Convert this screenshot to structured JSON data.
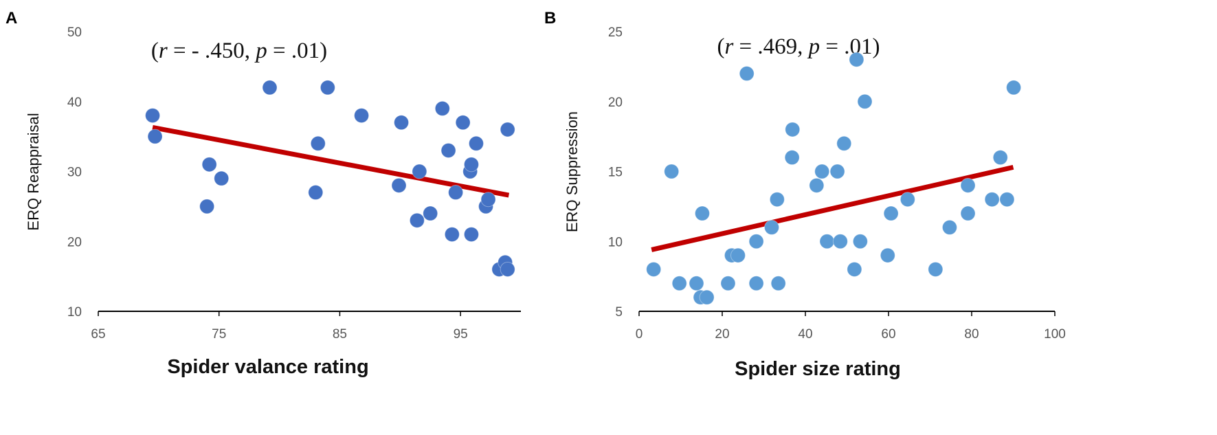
{
  "chart_data": [
    {
      "panel": "A",
      "type": "scatter",
      "annotation": {
        "prefix": "(",
        "r_symbol": "r",
        "r_value": " = - .450, ",
        "p_symbol": "p",
        "p_value": " = .01)"
      },
      "xlabel": "Spider valance rating",
      "ylabel": "ERQ Reappraisal",
      "xlim": [
        65,
        100
      ],
      "ylim": [
        10,
        50
      ],
      "xticks": [
        65,
        75,
        85,
        95
      ],
      "yticks": [
        10,
        20,
        30,
        40,
        50
      ],
      "marker_color": "#4472c4",
      "line_color": "#c00000",
      "trendline": {
        "x": [
          69.5,
          99
        ],
        "y": [
          36.3,
          26.6
        ]
      },
      "points": [
        {
          "x": 69.5,
          "y": 38
        },
        {
          "x": 69.7,
          "y": 35
        },
        {
          "x": 74,
          "y": 25
        },
        {
          "x": 74.2,
          "y": 31
        },
        {
          "x": 75.2,
          "y": 29
        },
        {
          "x": 79.2,
          "y": 42
        },
        {
          "x": 83,
          "y": 27
        },
        {
          "x": 83.2,
          "y": 34
        },
        {
          "x": 84,
          "y": 42
        },
        {
          "x": 86.8,
          "y": 38
        },
        {
          "x": 89.9,
          "y": 28
        },
        {
          "x": 90.1,
          "y": 37
        },
        {
          "x": 91.4,
          "y": 23
        },
        {
          "x": 91.6,
          "y": 30
        },
        {
          "x": 92.5,
          "y": 24
        },
        {
          "x": 93.5,
          "y": 39
        },
        {
          "x": 94,
          "y": 33
        },
        {
          "x": 94.3,
          "y": 21
        },
        {
          "x": 94.6,
          "y": 27
        },
        {
          "x": 95.2,
          "y": 37
        },
        {
          "x": 95.8,
          "y": 30
        },
        {
          "x": 95.9,
          "y": 21
        },
        {
          "x": 95.9,
          "y": 31
        },
        {
          "x": 96.3,
          "y": 34
        },
        {
          "x": 97.1,
          "y": 25
        },
        {
          "x": 97.3,
          "y": 26
        },
        {
          "x": 98.2,
          "y": 16
        },
        {
          "x": 98.7,
          "y": 17
        },
        {
          "x": 98.9,
          "y": 16
        },
        {
          "x": 98.9,
          "y": 36
        }
      ]
    },
    {
      "panel": "B",
      "type": "scatter",
      "annotation": {
        "prefix": "(",
        "r_symbol": "r",
        "r_value": " = .469, ",
        "p_symbol": "p",
        "p_value": " = .01)"
      },
      "xlabel": "Spider size rating",
      "ylabel": "ERQ Suppression",
      "xlim": [
        0,
        100
      ],
      "ylim": [
        5,
        25
      ],
      "xticks": [
        0,
        20,
        40,
        60,
        80,
        100
      ],
      "yticks": [
        5,
        10,
        15,
        20,
        25
      ],
      "marker_color": "#5b9bd5",
      "line_color": "#c00000",
      "trendline": {
        "x": [
          3,
          90
        ],
        "y": [
          9.4,
          15.3
        ]
      },
      "points": [
        {
          "x": 3.5,
          "y": 8
        },
        {
          "x": 7.8,
          "y": 15
        },
        {
          "x": 9.7,
          "y": 7
        },
        {
          "x": 13.8,
          "y": 7
        },
        {
          "x": 14.8,
          "y": 6
        },
        {
          "x": 15.2,
          "y": 12
        },
        {
          "x": 16.3,
          "y": 6
        },
        {
          "x": 21.4,
          "y": 7
        },
        {
          "x": 22.3,
          "y": 9
        },
        {
          "x": 23.8,
          "y": 9
        },
        {
          "x": 25.9,
          "y": 22
        },
        {
          "x": 28.2,
          "y": 10
        },
        {
          "x": 28.2,
          "y": 7
        },
        {
          "x": 31.9,
          "y": 11
        },
        {
          "x": 33.2,
          "y": 13
        },
        {
          "x": 33.5,
          "y": 7
        },
        {
          "x": 36.9,
          "y": 18
        },
        {
          "x": 36.8,
          "y": 16
        },
        {
          "x": 42.7,
          "y": 14
        },
        {
          "x": 44,
          "y": 15
        },
        {
          "x": 45.2,
          "y": 10
        },
        {
          "x": 47.7,
          "y": 15
        },
        {
          "x": 48.4,
          "y": 10
        },
        {
          "x": 49.3,
          "y": 17
        },
        {
          "x": 51.8,
          "y": 8
        },
        {
          "x": 52.3,
          "y": 23
        },
        {
          "x": 53.2,
          "y": 10
        },
        {
          "x": 54.3,
          "y": 20
        },
        {
          "x": 59.8,
          "y": 9
        },
        {
          "x": 60.6,
          "y": 12
        },
        {
          "x": 64.6,
          "y": 13
        },
        {
          "x": 71.3,
          "y": 8
        },
        {
          "x": 74.7,
          "y": 11
        },
        {
          "x": 79.1,
          "y": 14
        },
        {
          "x": 79.1,
          "y": 12
        },
        {
          "x": 84.9,
          "y": 13
        },
        {
          "x": 86.9,
          "y": 16
        },
        {
          "x": 88.5,
          "y": 13
        },
        {
          "x": 90.1,
          "y": 21
        }
      ]
    }
  ]
}
